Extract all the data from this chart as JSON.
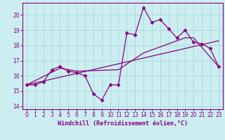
{
  "xlabel": "Windchill (Refroidissement éolien,°C)",
  "bg_color": "#cceef0",
  "grid_color": "#aadddd",
  "line_color": "#880088",
  "xlim": [
    -0.5,
    23.5
  ],
  "ylim": [
    13.8,
    20.8
  ],
  "xticks": [
    0,
    1,
    2,
    3,
    4,
    5,
    6,
    7,
    8,
    9,
    10,
    11,
    12,
    13,
    14,
    15,
    16,
    17,
    18,
    19,
    20,
    21,
    22,
    23
  ],
  "yticks": [
    14,
    15,
    16,
    17,
    18,
    19,
    20
  ],
  "curve1_x": [
    0,
    1,
    2,
    3,
    4,
    5,
    6,
    7,
    8,
    9,
    10,
    11,
    12,
    13,
    14,
    15,
    16,
    17,
    18,
    19,
    20,
    21,
    22,
    23
  ],
  "curve1_y": [
    15.4,
    15.4,
    15.6,
    16.4,
    16.6,
    16.3,
    16.2,
    16.0,
    14.8,
    14.4,
    15.4,
    15.4,
    18.8,
    18.7,
    20.5,
    19.5,
    19.7,
    19.1,
    18.5,
    19.0,
    18.2,
    18.1,
    17.8,
    16.6
  ],
  "curve2_x": [
    0,
    23
  ],
  "curve2_y": [
    15.4,
    18.3
  ],
  "curve3_x": [
    0,
    4,
    6,
    11,
    14,
    19,
    20,
    23
  ],
  "curve3_y": [
    15.4,
    16.5,
    16.3,
    16.4,
    17.5,
    18.5,
    18.5,
    16.6
  ],
  "marker": "D",
  "markersize": 2.5,
  "linewidth": 0.9,
  "xlabel_fontsize": 6,
  "tick_fontsize": 5.5
}
